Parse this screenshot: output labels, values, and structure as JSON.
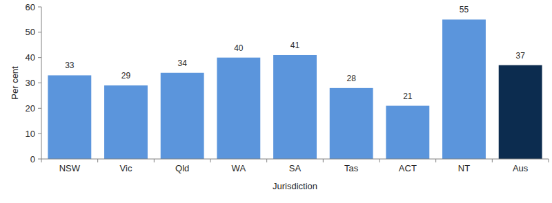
{
  "chart_data": {
    "type": "bar",
    "categories": [
      "NSW",
      "Vic",
      "Qld",
      "WA",
      "SA",
      "Tas",
      "ACT",
      "NT",
      "Aus"
    ],
    "values": [
      33,
      29,
      34,
      40,
      41,
      28,
      21,
      55,
      37
    ],
    "colors": [
      "#5b95dc",
      "#5b95dc",
      "#5b95dc",
      "#5b95dc",
      "#5b95dc",
      "#5b95dc",
      "#5b95dc",
      "#5b95dc",
      "#0c2c4f"
    ],
    "ylim": [
      0,
      60
    ],
    "yticks": [
      0,
      10,
      20,
      30,
      40,
      50,
      60
    ],
    "grid": false,
    "data_labels": true,
    "x_label": "Jurisdiction",
    "y_label": "Per cent"
  }
}
